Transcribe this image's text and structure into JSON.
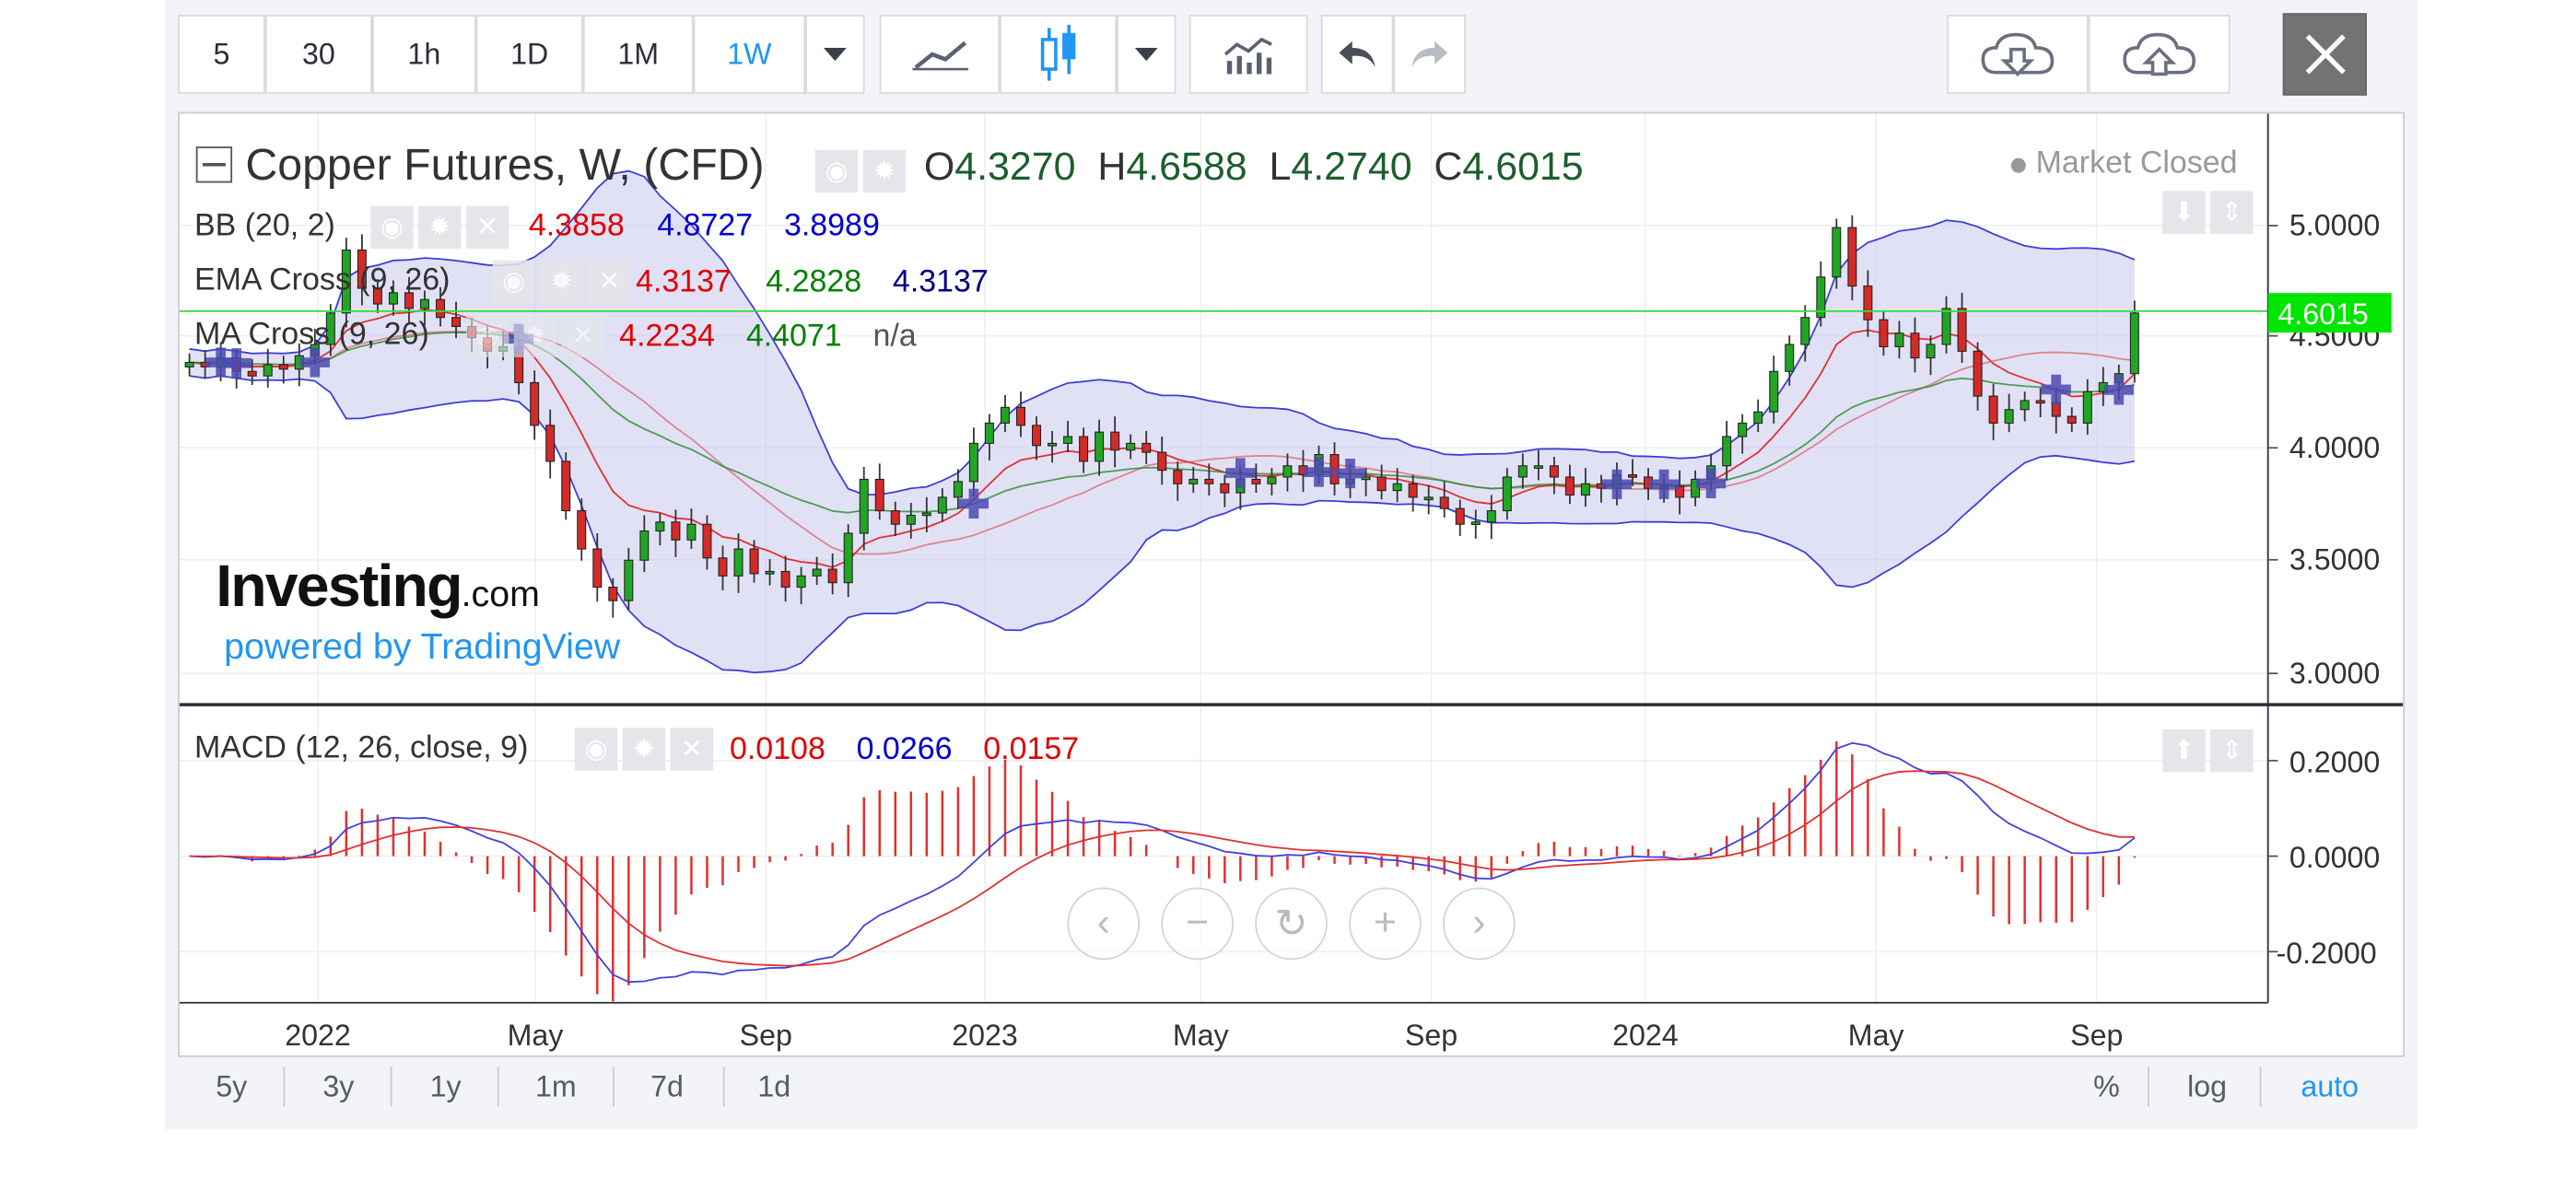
{
  "toolbar": {
    "intervals": [
      "5",
      "30",
      "1h",
      "1D",
      "1M",
      "1W"
    ],
    "active_interval": "1W",
    "icons": [
      "chevron-down-icon",
      "line-chart-icon",
      "candlestick-icon",
      "chevron-down-icon",
      "indicators-icon",
      "undo-icon",
      "redo-icon",
      "cloud-download-icon",
      "cloud-upload-icon",
      "close-icon"
    ]
  },
  "legend": {
    "title": "Copper Futures, W, (CFD)",
    "ohlc": {
      "o_label": "O",
      "o": "4.3270",
      "h_label": "H",
      "h": "4.6588",
      "l_label": "L",
      "l": "4.2740",
      "c_label": "C",
      "c": "4.6015"
    },
    "status": "Market Closed",
    "bb": {
      "name": "BB (20, 2)",
      "v1": "4.3858",
      "v2": "4.8727",
      "v3": "3.8989"
    },
    "ema": {
      "name": "EMA Cross (9, 26)",
      "v1": "4.3137",
      "v2": "4.2828",
      "v3": "4.3137"
    },
    "ma": {
      "name": "MA Cross (9, 26)",
      "v1": "4.2234",
      "v2": "4.4071",
      "v3": "n/a"
    },
    "macd": {
      "name": "MACD (12, 26, close, 9)",
      "v1": "0.0108",
      "v2": "0.0266",
      "v3": "0.0157"
    }
  },
  "watermark": {
    "brand": "Investing",
    "brand_suffix": ".com",
    "powered": "powered by TradingView"
  },
  "price_axis": {
    "ticks": [
      "5.0000",
      "4.5000",
      "4.0000",
      "3.5000",
      "3.0000"
    ],
    "last_price": "4.6015"
  },
  "macd_axis": {
    "ticks": [
      "0.2000",
      "0.0000",
      "-0.2000"
    ]
  },
  "time_axis": {
    "ticks": [
      "2022",
      "May",
      "Sep",
      "2023",
      "May",
      "Sep",
      "2024",
      "May",
      "Sep"
    ]
  },
  "ranges": [
    "5y",
    "3y",
    "1y",
    "1m",
    "7d",
    "1d"
  ],
  "scale_options": [
    "%",
    "log",
    "auto"
  ],
  "active_scale": "auto",
  "colors": {
    "up": "#21a624",
    "down": "#d32a2a",
    "accent": "#2196f3",
    "last_price": "#00e600",
    "band": "#c9c9ee"
  },
  "chart_data": {
    "type": "candlestick",
    "title": "Copper Futures, W, (CFD)",
    "weekly_closes": [
      4.38,
      4.36,
      4.4,
      4.34,
      4.32,
      4.37,
      4.35,
      4.41,
      4.46,
      4.6,
      4.88,
      4.71,
      4.64,
      4.69,
      4.62,
      4.66,
      4.58,
      4.54,
      4.49,
      4.43,
      4.45,
      4.29,
      4.1,
      3.94,
      3.72,
      3.55,
      3.38,
      3.32,
      3.5,
      3.63,
      3.67,
      3.59,
      3.66,
      3.51,
      3.43,
      3.55,
      3.44,
      3.45,
      3.38,
      3.43,
      3.46,
      3.4,
      3.62,
      3.86,
      3.72,
      3.66,
      3.7,
      3.71,
      3.78,
      3.85,
      4.02,
      4.11,
      4.18,
      4.1,
      4.01,
      4.02,
      4.05,
      3.94,
      4.07,
      3.99,
      4.02,
      3.98,
      3.9,
      3.84,
      3.86,
      3.84,
      3.8,
      3.86,
      3.84,
      3.87,
      3.92,
      3.88,
      3.97,
      3.84,
      3.86,
      3.87,
      3.81,
      3.84,
      3.78,
      3.78,
      3.73,
      3.66,
      3.67,
      3.72,
      3.87,
      3.92,
      3.92,
      3.87,
      3.79,
      3.84,
      3.82,
      3.88,
      3.87,
      3.82,
      3.83,
      3.78,
      3.86,
      3.92,
      4.05,
      4.11,
      4.16,
      4.34,
      4.46,
      4.58,
      4.76,
      4.98,
      4.72,
      4.57,
      4.45,
      4.51,
      4.4,
      4.46,
      4.62,
      4.43,
      4.23,
      4.11,
      4.17,
      4.21,
      4.2,
      4.14,
      4.11,
      4.25,
      4.29,
      4.33,
      4.6
    ]
  }
}
